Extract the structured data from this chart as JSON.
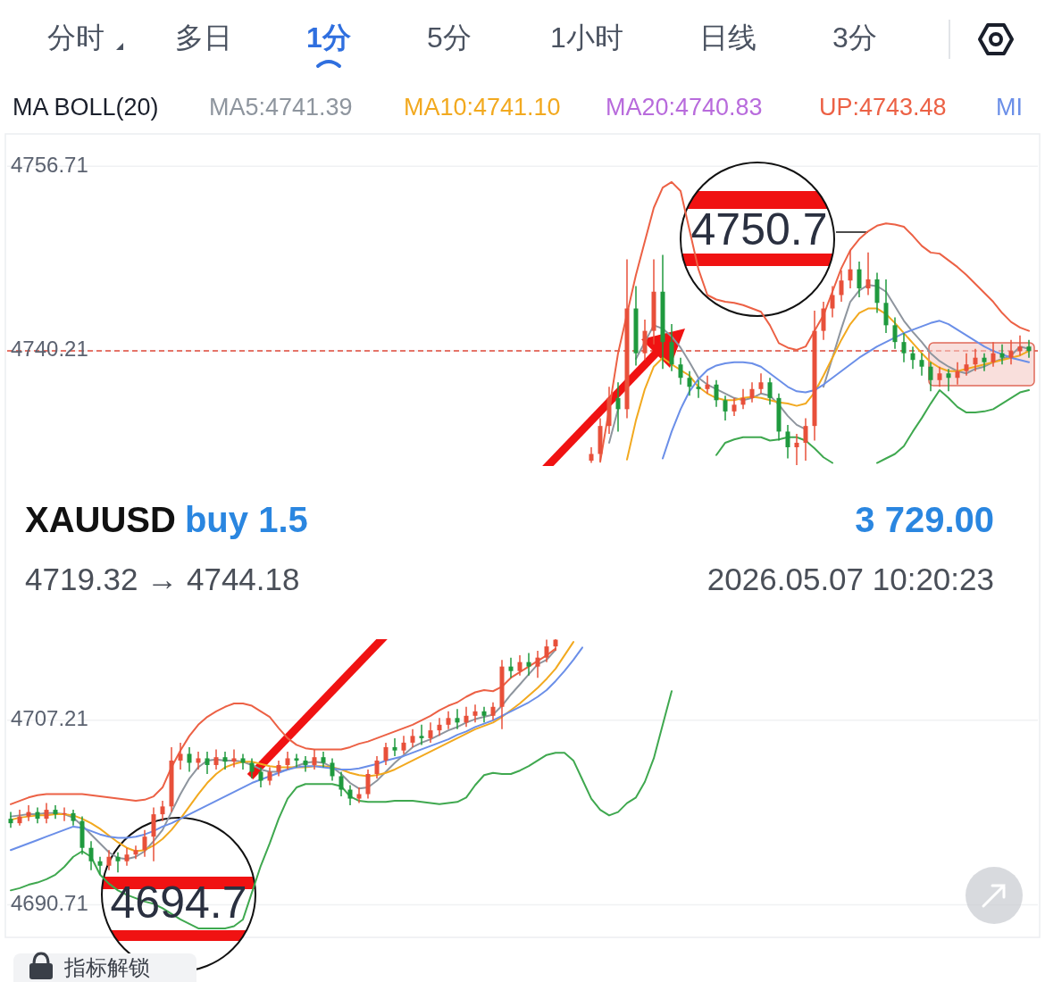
{
  "chart_data": {
    "type": "candlestick",
    "tick_labels": "y",
    "grid": "y",
    "legend": "top",
    "ylim": [
      4687.8,
      4759.6
    ],
    "yticks": [
      4756.71,
      4740.21,
      4707.21,
      4690.71
    ],
    "ref_lines": [
      {
        "axis": "y",
        "value": 4740.21,
        "color": "#e04a3a",
        "line_style": "dashed"
      }
    ],
    "annotations": [
      "分时",
      "多日",
      "1分",
      "5分",
      "1小时",
      "日线",
      "3分",
      "MA BOLL(20)",
      "MA20:4740.83",
      "XAUUSD",
      "buy 1.5",
      "3 729.00",
      "4719.32 → 4744.18",
      "2026.05.07 10:20:23",
      "4750.7",
      "4694.7",
      "指标解锁"
    ],
    "categories": [
      null,
      null,
      null,
      null,
      null,
      null,
      null,
      null,
      null,
      null,
      null,
      null,
      null,
      null,
      null,
      null,
      null,
      null,
      null,
      null,
      null,
      null,
      null,
      null,
      null,
      null,
      null,
      null,
      null,
      null,
      null,
      null,
      null,
      null,
      null,
      null,
      null,
      null,
      null,
      null,
      null,
      null,
      null,
      null,
      null,
      null,
      null,
      null,
      null,
      null,
      null,
      null,
      null,
      null,
      null,
      null,
      null,
      null,
      null,
      null,
      null,
      null,
      null,
      null,
      null,
      null,
      null,
      null,
      null,
      null,
      null,
      null,
      null,
      null,
      null,
      null,
      null,
      null,
      null,
      null,
      null,
      null,
      null,
      null,
      null,
      null,
      null,
      null,
      null,
      null,
      null,
      null,
      null,
      null,
      null,
      null,
      null,
      null,
      null,
      null,
      null,
      null,
      null,
      null,
      null,
      null,
      null,
      null,
      null,
      null,
      null,
      null,
      null,
      null,
      null
    ],
    "ohlc": [
      [
        4698.4,
        4699.0,
        4697.6,
        4698.0
      ],
      [
        4698.0,
        4699.2,
        4697.8,
        4698.6
      ],
      [
        4698.6,
        4699.6,
        4698.2,
        4699.0
      ],
      [
        4699.0,
        4699.4,
        4698.0,
        4698.4
      ],
      [
        4698.4,
        4699.8,
        4698.0,
        4699.2
      ],
      [
        4699.2,
        4699.6,
        4698.4,
        4698.8
      ],
      [
        4698.8,
        4699.4,
        4698.2,
        4698.9
      ],
      [
        4698.9,
        4699.2,
        4697.8,
        4698.2
      ],
      [
        4698.2,
        4698.6,
        4695.2,
        4695.8
      ],
      [
        4695.8,
        4696.4,
        4693.8,
        4694.6
      ],
      [
        4694.6,
        4695.0,
        4693.4,
        4694.2
      ],
      [
        4694.2,
        4695.6,
        4693.8,
        4695.0
      ],
      [
        4695.0,
        4695.4,
        4693.6,
        4694.6
      ],
      [
        4694.6,
        4695.8,
        4694.2,
        4695.2
      ],
      [
        4695.2,
        4696.0,
        4694.8,
        4695.6
      ],
      [
        4695.6,
        4697.4,
        4695.0,
        4696.8
      ],
      [
        4696.8,
        4699.4,
        4694.6,
        4698.8
      ],
      [
        4698.8,
        4700.0,
        4698.2,
        4699.5
      ],
      [
        4699.5,
        4704.8,
        4699.0,
        4703.6
      ],
      [
        4703.6,
        4705.2,
        4702.8,
        4704.2
      ],
      [
        4704.2,
        4704.8,
        4702.6,
        4703.4
      ],
      [
        4703.4,
        4704.4,
        4702.8,
        4703.8
      ],
      [
        4703.8,
        4704.4,
        4702.4,
        4703.2
      ],
      [
        4703.2,
        4704.6,
        4702.8,
        4703.9
      ],
      [
        4703.9,
        4704.4,
        4702.8,
        4703.5
      ],
      [
        4703.5,
        4704.6,
        4703.0,
        4703.8
      ],
      [
        4703.8,
        4704.2,
        4702.8,
        4703.4
      ],
      [
        4703.4,
        4703.8,
        4702.0,
        4702.6
      ],
      [
        4702.6,
        4703.0,
        4701.2,
        4701.8
      ],
      [
        4701.8,
        4703.0,
        4701.4,
        4702.6
      ],
      [
        4702.6,
        4703.6,
        4702.2,
        4703.2
      ],
      [
        4703.2,
        4704.4,
        4702.8,
        4703.8
      ],
      [
        4703.8,
        4704.2,
        4703.0,
        4703.6
      ],
      [
        4703.6,
        4704.0,
        4702.6,
        4703.2
      ],
      [
        4703.2,
        4704.6,
        4702.8,
        4703.9
      ],
      [
        4703.9,
        4704.4,
        4703.0,
        4703.4
      ],
      [
        4703.4,
        4703.8,
        4701.8,
        4702.2
      ],
      [
        4702.2,
        4702.6,
        4700.4,
        4701.0
      ],
      [
        4701.0,
        4701.4,
        4699.6,
        4700.2
      ],
      [
        4700.2,
        4701.2,
        4699.8,
        4700.6
      ],
      [
        4700.6,
        4702.8,
        4700.2,
        4702.4
      ],
      [
        4702.4,
        4704.0,
        4702.0,
        4703.6
      ],
      [
        4703.6,
        4705.2,
        4703.2,
        4704.8
      ],
      [
        4704.8,
        4705.6,
        4704.0,
        4704.5
      ],
      [
        4704.5,
        4705.8,
        4704.2,
        4705.2
      ],
      [
        4705.2,
        4706.4,
        4704.8,
        4705.8
      ],
      [
        4705.8,
        4706.8,
        4705.0,
        4705.6
      ],
      [
        4705.6,
        4707.0,
        4705.2,
        4706.3
      ],
      [
        4706.3,
        4707.4,
        4705.8,
        4706.8
      ],
      [
        4706.8,
        4708.0,
        4706.4,
        4707.4
      ],
      [
        4707.4,
        4708.2,
        4706.4,
        4707.0
      ],
      [
        4707.0,
        4708.4,
        4706.6,
        4707.6
      ],
      [
        4707.6,
        4708.6,
        4707.0,
        4708.0
      ],
      [
        4708.0,
        4708.4,
        4707.0,
        4707.6
      ],
      [
        4707.6,
        4708.8,
        4707.2,
        4708.4
      ],
      [
        4708.4,
        4712.6,
        4706.4,
        4712.0
      ],
      [
        4712.0,
        4712.8,
        4711.0,
        4711.6
      ],
      [
        4711.6,
        4713.0,
        4711.2,
        4712.4
      ],
      [
        4712.4,
        4713.2,
        4711.2,
        4712.0
      ],
      [
        4712.0,
        4713.4,
        4711.0,
        4712.8
      ],
      [
        4712.8,
        4714.4,
        4712.4,
        4713.8
      ],
      [
        4713.8,
        4714.6,
        4713.4,
        4714.4
      ],
      null,
      null,
      null,
      [
        4730.4,
        4731.6,
        4730.2,
        4731.0
      ],
      [
        4731.0,
        4734.2,
        4730.4,
        4733.5
      ],
      [
        4733.5,
        4737.0,
        4732.8,
        4736.0
      ],
      [
        4736.0,
        4737.4,
        4733.0,
        4735.0
      ],
      [
        4735.0,
        4748.4,
        4734.2,
        4744.0
      ],
      [
        4744.0,
        4746.0,
        4738.9,
        4740.0
      ],
      [
        4740.0,
        4743.0,
        4739.4,
        4742.0
      ],
      [
        4742.0,
        4748.4,
        4740.8,
        4745.5
      ],
      [
        4745.5,
        4748.8,
        4738.6,
        4741.0
      ],
      [
        4741.0,
        4742.6,
        4738.4,
        4739.0
      ],
      [
        4739.0,
        4739.6,
        4737.2,
        4737.8
      ],
      [
        4737.8,
        4738.4,
        4736.2,
        4737.0
      ],
      [
        4737.0,
        4737.6,
        4736.0,
        4736.8
      ],
      [
        4736.8,
        4738.0,
        4736.4,
        4737.2
      ],
      [
        4737.2,
        4737.6,
        4735.2,
        4735.8
      ],
      [
        4735.8,
        4736.2,
        4734.0,
        4734.8
      ],
      [
        4734.8,
        4736.0,
        4734.4,
        4735.4
      ],
      [
        4735.4,
        4736.8,
        4735.0,
        4736.0
      ],
      [
        4736.0,
        4737.4,
        4735.6,
        4736.8
      ],
      [
        4736.8,
        4738.2,
        4736.4,
        4737.4
      ],
      [
        4737.4,
        4737.8,
        4735.4,
        4736.0
      ],
      [
        4736.0,
        4736.4,
        4732.2,
        4733.0
      ],
      [
        4733.0,
        4733.6,
        4730.6,
        4731.6
      ],
      [
        4731.6,
        4732.8,
        4730.0,
        4732.0
      ],
      [
        4732.0,
        4734.2,
        4730.4,
        4733.5
      ],
      [
        4733.5,
        4743.8,
        4732.2,
        4742.0
      ],
      [
        4742.0,
        4744.6,
        4741.2,
        4744.0
      ],
      [
        4744.0,
        4746.0,
        4743.2,
        4745.2
      ],
      [
        4745.2,
        4747.4,
        4744.6,
        4746.5
      ],
      [
        4746.5,
        4749.2,
        4745.8,
        4747.5
      ],
      [
        4747.5,
        4748.2,
        4745.0,
        4745.8
      ],
      [
        4745.8,
        4749.0,
        4745.2,
        4746.6
      ],
      [
        4746.6,
        4747.2,
        4743.6,
        4744.5
      ],
      [
        4744.5,
        4746.6,
        4741.8,
        4742.5
      ],
      [
        4742.5,
        4743.2,
        4740.4,
        4741.0
      ],
      [
        4741.0,
        4741.8,
        4739.2,
        4740.0
      ],
      [
        4740.0,
        4740.6,
        4738.6,
        4739.4
      ],
      [
        4739.4,
        4740.0,
        4738.0,
        4738.8
      ],
      [
        4738.8,
        4739.2,
        4736.6,
        4737.6
      ],
      [
        4737.6,
        4738.8,
        4737.0,
        4738.2
      ],
      [
        4738.2,
        4738.6,
        4736.6,
        4737.8
      ],
      [
        4737.8,
        4739.2,
        4737.2,
        4738.4
      ],
      [
        4738.4,
        4740.0,
        4738.0,
        4739.0
      ],
      [
        4739.0,
        4740.4,
        4738.4,
        4739.6
      ],
      [
        4739.6,
        4740.0,
        4738.4,
        4739.2
      ],
      [
        4739.2,
        4741.0,
        4738.8,
        4740.0
      ],
      [
        4740.0,
        4740.8,
        4739.0,
        4739.6
      ],
      [
        4739.6,
        4741.2,
        4739.0,
        4740.2
      ],
      [
        4740.2,
        4741.6,
        4739.8,
        4740.6
      ],
      [
        4740.6,
        4741.2,
        4739.6,
        4740.2
      ]
    ],
    "colors": [
      "#1f9a3e",
      "#e8503a",
      "#e8503a",
      "#1f9a3e",
      "#e8503a",
      "#1f9a3e",
      "#e8503a",
      "#1f9a3e",
      "#1f9a3e",
      "#1f9a3e",
      "#1f9a3e",
      "#e8503a",
      "#1f9a3e",
      "#e8503a",
      "#e8503a",
      "#e8503a",
      "#e8503a",
      "#e8503a",
      "#e8503a",
      "#e8503a",
      "#1f9a3e",
      "#e8503a",
      "#1f9a3e",
      "#e8503a",
      "#1f9a3e",
      "#e8503a",
      "#1f9a3e",
      "#1f9a3e",
      "#1f9a3e",
      "#e8503a",
      "#e8503a",
      "#e8503a",
      "#1f9a3e",
      "#1f9a3e",
      "#e8503a",
      "#1f9a3e",
      "#1f9a3e",
      "#1f9a3e",
      "#1f9a3e",
      "#e8503a",
      "#e8503a",
      "#e8503a",
      "#e8503a",
      "#1f9a3e",
      "#e8503a",
      "#e8503a",
      "#1f9a3e",
      "#e8503a",
      "#e8503a",
      "#e8503a",
      "#1f9a3e",
      "#e8503a",
      "#e8503a",
      "#1f9a3e",
      "#e8503a",
      "#e8503a",
      "#1f9a3e",
      "#e8503a",
      "#1f9a3e",
      "#e8503a",
      "#e8503a",
      "#e8503a",
      null,
      null,
      null,
      "#e8503a",
      "#e8503a",
      "#e8503a",
      "#1f9a3e",
      "#e8503a",
      "#1f9a3e",
      "#e8503a",
      "#e8503a",
      "#1f9a3e",
      "#1f9a3e",
      "#1f9a3e",
      "#1f9a3e",
      "#1f9a3e",
      "#e8503a",
      "#1f9a3e",
      "#1f9a3e",
      "#e8503a",
      "#e8503a",
      "#e8503a",
      "#e8503a",
      "#1f9a3e",
      "#1f9a3e",
      "#1f9a3e",
      "#e8503a",
      "#e8503a",
      "#e8503a",
      "#e8503a",
      "#e8503a",
      "#e8503a",
      "#e8503a",
      "#1f9a3e",
      "#e8503a",
      "#1f9a3e",
      "#1f9a3e",
      "#1f9a3e",
      "#1f9a3e",
      "#1f9a3e",
      "#1f9a3e",
      "#1f9a3e",
      "#e8503a",
      "#1f9a3e",
      "#e8503a",
      "#e8503a",
      "#e8503a",
      "#1f9a3e",
      "#e8503a",
      "#1f9a3e",
      "#e8503a",
      "#e8503a",
      "#1f9a3e"
    ],
    "series": [
      {
        "type": "line",
        "name": "MA5:4741.39",
        "color": "#8e959e",
        "values": [
          4698.6,
          4698.7,
          4698.8,
          4698.8,
          4698.9,
          4698.9,
          4698.8,
          4698.5,
          4697.8,
          4697.0,
          4696.2,
          4695.4,
          4694.9,
          4694.8,
          4695.0,
          4695.5,
          4696.4,
          4697.4,
          4699.0,
          4700.6,
          4702.0,
          4703.0,
          4703.6,
          4703.7,
          4703.6,
          4703.6,
          4703.5,
          4703.2,
          4702.8,
          4702.6,
          4702.6,
          4702.8,
          4703.1,
          4703.4,
          4703.5,
          4703.4,
          4703.0,
          4702.4,
          4701.6,
          4701.1,
          4701.2,
          4701.8,
          4702.6,
          4703.4,
          4704.1,
          4704.8,
          4705.2,
          4705.5,
          4705.9,
          4706.3,
          4706.6,
          4707.0,
          4707.3,
          4707.5,
          4707.7,
          4708.5,
          4709.5,
          4710.4,
          4711.3,
          4712.2,
          4712.6,
          4713.5,
          null,
          null,
          null,
          null,
          null,
          4732.0,
          4735.0,
          null,
          4739.5,
          4741.0,
          4742.5,
          4742.2,
          4741.5,
          4740.5,
          4739.2,
          4737.8,
          4737.2,
          4736.8,
          4736.4,
          4736.0,
          4735.8,
          4736.0,
          4736.4,
          4736.2,
          4735.4,
          4734.4,
          4733.6,
          4733.2,
          null,
          4737.0,
          4739.6,
          4742.2,
          4744.6,
          4745.6,
          4746.1,
          4746.0,
          4745.5,
          4744.2,
          4742.9,
          4741.9,
          4741.0,
          4740.0,
          4739.3,
          4738.8,
          4738.4,
          4738.2,
          4738.6,
          4738.8,
          4739.2,
          4739.5,
          4739.8,
          4740.6,
          4740.4
        ]
      },
      {
        "type": "line",
        "name": "MA10:4741.10",
        "color": "#f2a91f",
        "values": [
          4698.3,
          4698.5,
          4698.6,
          4698.7,
          4698.7,
          4698.8,
          4698.8,
          4698.7,
          4698.4,
          4698.0,
          4697.5,
          4696.9,
          4696.3,
          4695.8,
          4695.5,
          4695.6,
          4696.0,
          4696.6,
          4697.4,
          4698.4,
          4699.5,
          4700.6,
          4701.6,
          4702.4,
          4703.0,
          4703.3,
          4703.5,
          4703.5,
          4703.3,
          4703.1,
          4703.0,
          4703.0,
          4703.0,
          4703.0,
          4703.1,
          4703.1,
          4703.0,
          4702.8,
          4702.5,
          4702.3,
          4702.2,
          4702.3,
          4702.5,
          4702.8,
          4703.2,
          4703.6,
          4704.0,
          4704.4,
          4704.8,
          4705.2,
          4705.6,
          4706.0,
          4706.4,
          4706.7,
          4707.0,
          4707.5,
          4708.1,
          4708.7,
          4709.4,
          4710.1,
          4710.9,
          4711.8,
          4713.0,
          4714.2,
          null,
          null,
          null,
          null,
          null,
          4730.5,
          4734.0,
          4736.8,
          4738.8,
          4739.6,
          4739.0,
          4738.5,
          4738.0,
          4737.0,
          4736.4,
          4736.0,
          4735.8,
          4735.8,
          4736.0,
          4736.1,
          4736.0,
          4735.8,
          4735.6,
          4735.5,
          4735.3,
          4735.5,
          4736.5,
          4738.0,
          4739.6,
          4741.2,
          4742.6,
          4743.6,
          4744.0,
          4744.0,
          4743.5,
          4742.7,
          4741.8,
          4740.9,
          4740.0,
          4739.2,
          4738.7,
          4738.4,
          4738.4,
          4738.6,
          4738.8,
          4739.0,
          4739.2,
          4739.4,
          4739.6,
          4739.8,
          4740.2
        ]
      },
      {
        "type": "line",
        "name": "UP:4743.48",
        "color": "#ec6145",
        "values": [
          4699.7,
          4700.0,
          4700.3,
          4700.5,
          4700.6,
          4700.6,
          4700.6,
          4700.6,
          4700.6,
          4700.5,
          4700.4,
          4700.3,
          4700.2,
          4700.1,
          4700.0,
          4700.1,
          4700.4,
          4701.2,
          4703.0,
          4704.5,
          4705.8,
          4706.8,
          4707.5,
          4708.0,
          4708.4,
          4708.7,
          4708.7,
          4708.5,
          4708.0,
          4707.5,
          4706.5,
          4705.6,
          4705.0,
          4704.7,
          4704.6,
          4704.6,
          4704.6,
          4704.6,
          4704.8,
          4705.1,
          4705.3,
          4705.6,
          4705.9,
          4706.2,
          4706.5,
          4706.8,
          4707.2,
          4707.6,
          4708.1,
          4708.5,
          4708.8,
          4709.3,
          4709.7,
          4709.9,
          4709.8,
          4710.2,
          4711.0,
          4711.5,
          4712.0,
          4712.5,
          4713.0,
          4713.6,
          null,
          null,
          null,
          null,
          4730.3,
          4735.0,
          4740.0,
          4743.5,
          4747.0,
          4750.0,
          4753.0,
          4754.8,
          4755.3,
          4754.5,
          4751.0,
          4747.5,
          4745.2,
          4744.8,
          4744.6,
          4744.5,
          4744.3,
          4744.0,
          4743.7,
          4742.5,
          4740.9,
          4740.5,
          4740.3,
          4740.6,
          4742.0,
          4743.4,
          4745.5,
          4747.6,
          4749.2,
          4750.2,
          4750.9,
          4751.4,
          4751.6,
          4751.5,
          4751.3,
          4750.5,
          4749.6,
          4749.0,
          4748.9,
          4748.3,
          4747.7,
          4747.0,
          4746.2,
          4745.4,
          4744.6,
          4743.6,
          4742.8,
          4742.3,
          4742.0
        ]
      },
      {
        "type": "line",
        "name": "MI",
        "color": "#6b8fe8",
        "values": [
          4695.6,
          4695.9,
          4696.2,
          4696.5,
          4696.8,
          4697.1,
          4697.4,
          4697.7,
          4697.6,
          4697.3,
          4697.0,
          4696.8,
          4696.7,
          4696.7,
          4696.8,
          4697.0,
          4697.3,
          4697.7,
          4698.0,
          4698.4,
          4698.8,
          4699.2,
          4699.6,
          4700.0,
          4700.4,
          4700.8,
          4701.2,
          4701.6,
          4701.9,
          4702.2,
          4702.5,
          4702.8,
          4703.0,
          4703.1,
          4703.1,
          4703.0,
          4702.9,
          4702.8,
          4702.8,
          4702.9,
          4703.1,
          4703.3,
          4703.6,
          4703.8,
          4704.0,
          4704.3,
          4704.6,
          4704.9,
          4705.2,
          4705.5,
          4705.9,
          4706.2,
          4706.6,
          4706.9,
          4707.2,
          4707.6,
          4708.0,
          4708.4,
          4708.8,
          4709.3,
          4709.9,
          4710.7,
          4711.6,
          4712.6,
          4713.7,
          null,
          null,
          null,
          null,
          null,
          null,
          null,
          null,
          4730.6,
          4733.0,
          4735.0,
          4736.6,
          4737.7,
          4738.5,
          4738.9,
          4739.1,
          4739.2,
          4739.2,
          4739.1,
          4738.8,
          4738.2,
          4737.6,
          4737.0,
          4736.6,
          4736.5,
          4736.7,
          4737.2,
          4737.8,
          4738.4,
          4739.0,
          4739.6,
          4740.1,
          4740.6,
          4741.0,
          4741.4,
          4741.8,
          4742.1,
          4742.4,
          4742.7,
          4742.9,
          4742.6,
          4742.1,
          4741.6,
          4741.1,
          4740.6,
          4740.2,
          4739.9,
          4739.6,
          4739.4,
          4739.2
        ]
      },
      {
        "type": "line",
        "color": "#3fa84f",
        "values": [
          4692.0,
          4692.2,
          4692.5,
          4692.7,
          4693.0,
          4693.4,
          4694.1,
          4695.0,
          4695.5,
          4695.0,
          4693.4,
          4692.6,
          4692.0,
          4691.6,
          4691.3,
          4691.0,
          4690.8,
          4690.4,
          4689.9,
          4689.4,
          4689.0,
          4688.6,
          4688.6,
          4688.6,
          4688.6,
          4688.8,
          4689.4,
          4691.8,
          4694.2,
          4696.2,
          4698.4,
          4700.2,
          4701.2,
          4701.5,
          4701.5,
          4701.5,
          4701.5,
          4701.3,
          4700.4,
          4700.0,
          4699.9,
          4699.9,
          4699.9,
          4700.0,
          4700.0,
          4700.0,
          4699.9,
          4699.8,
          4699.7,
          4699.8,
          4699.9,
          4700.3,
          4701.4,
          4702.3,
          4702.5,
          4702.4,
          4702.4,
          4702.7,
          4703.1,
          4703.6,
          4704.1,
          4704.3,
          4704.3,
          4703.6,
          4701.9,
          4700.2,
          4699.2,
          4698.7,
          4699.0,
          4699.8,
          4700.3,
          4701.7,
          4703.8,
          4706.8,
          4709.8,
          null,
          null,
          null,
          null,
          4730.9,
          4732.0,
          4732.3,
          4732.5,
          4732.5,
          4732.5,
          4732.2,
          4732.3,
          4732.5,
          4732.5,
          4732.2,
          4731.5,
          4730.7,
          4730.2,
          null,
          null,
          null,
          null,
          4730.2,
          4730.6,
          4731.0,
          4731.7,
          4733.0,
          4734.2,
          4735.5,
          4736.7,
          4736.0,
          4735.2,
          4734.7,
          4734.7,
          4734.8,
          4735.0,
          4735.5,
          4736.0,
          4736.5,
          4736.7
        ]
      }
    ]
  }
}
